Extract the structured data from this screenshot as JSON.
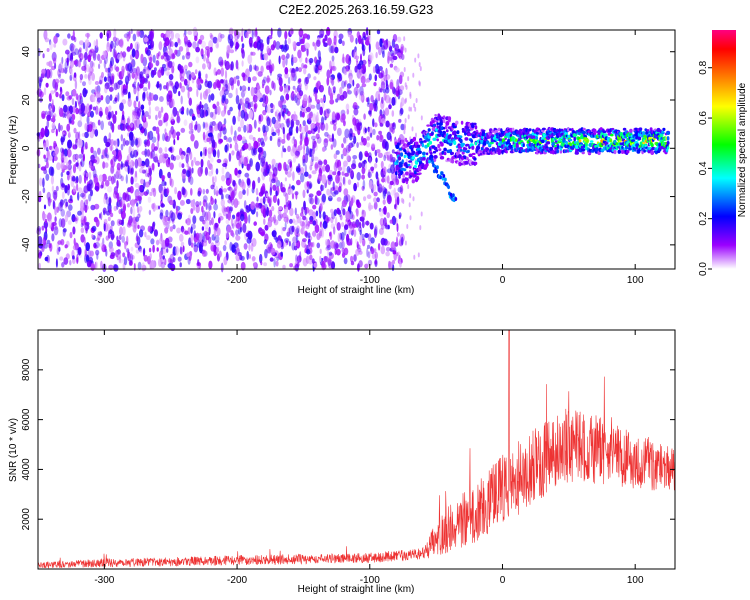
{
  "title": "C2E2.2025.263.16.59.G23",
  "chart_data": [
    {
      "type": "heatmap",
      "xlabel": "Height of straight line (km)",
      "ylabel": "Frequency (Hz)",
      "xlim": [
        -350,
        130
      ],
      "ylim": [
        -50,
        49
      ],
      "xticks": [
        -300,
        -200,
        -100,
        0,
        100
      ],
      "yticks": [
        -40,
        -20,
        0,
        20,
        40
      ],
      "colorbar": {
        "label": "Normalized spectral amplitude",
        "range": [
          0,
          0.95
        ],
        "ticks": [
          0.0,
          0.2,
          0.4,
          0.6,
          0.8
        ],
        "colormap": [
          "#ffffff",
          "#9a00ff",
          "#0000ff",
          "#00ffff",
          "#00ff00",
          "#ffff00",
          "#ff8000",
          "#ff0000",
          "#ff0080"
        ]
      },
      "features": {
        "noise_region": {
          "x_from": -350,
          "x_to": -75,
          "freq_from": -50,
          "freq_to": 49,
          "typical_amplitude": 0.08
        },
        "signal_track": [
          {
            "x": -80,
            "freq": -5,
            "amp": 0.35
          },
          {
            "x": -65,
            "freq": -5,
            "amp": 0.4
          },
          {
            "x": -50,
            "freq": 5,
            "amp": 0.4
          },
          {
            "x": -30,
            "freq": 2,
            "amp": 0.35
          },
          {
            "x": 0,
            "freq": 3,
            "amp": 0.5
          },
          {
            "x": 40,
            "freq": 3,
            "amp": 0.6
          },
          {
            "x": 80,
            "freq": 3,
            "amp": 0.65
          },
          {
            "x": 125,
            "freq": 3,
            "amp": 0.7
          }
        ],
        "descending_tail": [
          {
            "x": -55,
            "freq": -5
          },
          {
            "x": -45,
            "freq": -12
          },
          {
            "x": -35,
            "freq": -23
          }
        ]
      }
    },
    {
      "type": "line",
      "xlabel": "Height of straight line (km)",
      "ylabel": "SNR (10 * v/v)",
      "xlim": [
        -350,
        130
      ],
      "ylim": [
        0,
        9600
      ],
      "xticks": [
        -300,
        -200,
        -100,
        0,
        100
      ],
      "yticks": [
        2000,
        4000,
        6000,
        8000
      ],
      "color": "#ee3333",
      "envelope": [
        {
          "x": -350,
          "base": 150,
          "spread": 250
        },
        {
          "x": -300,
          "base": 250,
          "spread": 350
        },
        {
          "x": -200,
          "base": 350,
          "spread": 400
        },
        {
          "x": -100,
          "base": 450,
          "spread": 400
        },
        {
          "x": -60,
          "base": 600,
          "spread": 500
        },
        {
          "x": -45,
          "base": 1500,
          "spread": 1800
        },
        {
          "x": -20,
          "base": 2300,
          "spread": 2600
        },
        {
          "x": 0,
          "base": 3200,
          "spread": 3000
        },
        {
          "x": 25,
          "base": 4200,
          "spread": 3000
        },
        {
          "x": 50,
          "base": 5000,
          "spread": 3100
        },
        {
          "x": 80,
          "base": 4700,
          "spread": 2600
        },
        {
          "x": 100,
          "base": 4300,
          "spread": 2200
        },
        {
          "x": 130,
          "base": 4000,
          "spread": 1800
        }
      ],
      "peak": {
        "x": 5,
        "y": 9600
      }
    }
  ]
}
